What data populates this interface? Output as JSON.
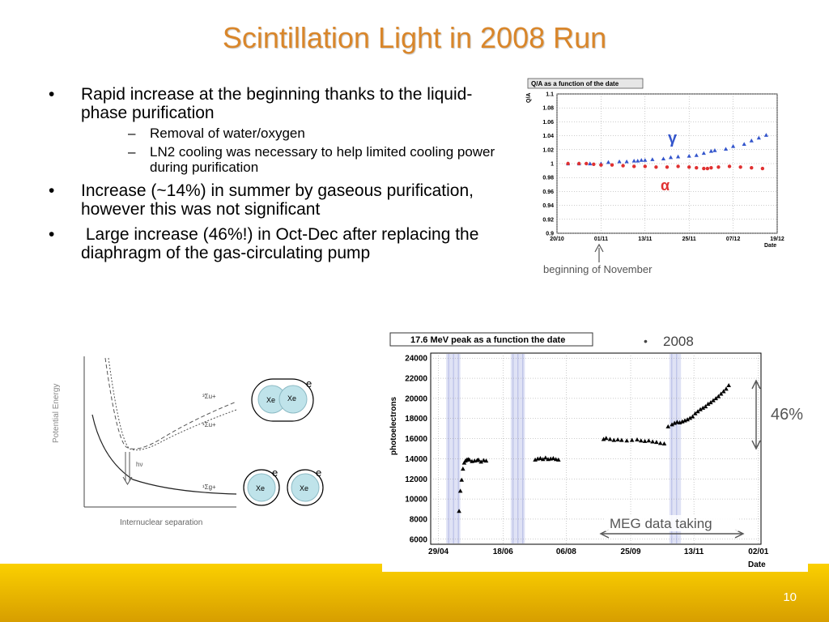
{
  "slide": {
    "title": "Scintillation Light in 2008 Run",
    "page_number": "10",
    "bullets": [
      {
        "text": "Rapid increase at the beginning thanks to the liquid-phase purification",
        "sub": [
          "Removal of water/oxygen",
          "LN2 cooling was necessary to help limited cooling power during purification"
        ]
      },
      {
        "text": "Increase (~14%) in summer by gaseous purification, however this was not significant",
        "sub": []
      },
      {
        "text": " Large increase (46%!) in Oct-Dec after replacing the diaphragm of the gas-circulating pump",
        "sub": []
      }
    ],
    "bullet_glyph": "•",
    "sub_glyph": "–"
  },
  "qa_chart": {
    "title": "Q/A as a function of the date",
    "ylabel": "Q/A",
    "xlabel": "Date",
    "x_ticks": [
      "20/10",
      "01/11",
      "13/11",
      "25/11",
      "07/12",
      "19/12"
    ],
    "y_ticks": [
      "0.9",
      "0.92",
      "0.94",
      "0.96",
      "0.98",
      "1",
      "1.02",
      "1.04",
      "1.06",
      "1.08",
      "1.1"
    ],
    "gamma_label": "γ",
    "alpha_label": "α",
    "annotation": "beginning of November",
    "gamma_color": "#3355cc",
    "alpha_color": "#e03030"
  },
  "peak_chart": {
    "title": "17.6 MeV peak as a function the date",
    "ylabel": "photoelectrons",
    "xlabel": "Date",
    "x_ticks": [
      "29/04",
      "18/06",
      "06/08",
      "25/09",
      "13/11",
      "02/01"
    ],
    "y_ticks": [
      "6000",
      "8000",
      "10000",
      "12000",
      "14000",
      "16000",
      "18000",
      "20000",
      "22000",
      "24000"
    ],
    "legend_bullet": "•",
    "legend": "2008",
    "percent_label": "46%",
    "data_taking_label": "MEG data taking"
  },
  "energy_diagram": {
    "ylabel": "Potential Energy",
    "xlabel": "Internuclear separation",
    "hv_label": "hν",
    "curve_labels": [
      "³Σu+",
      "¹Σu+",
      "¹Σg+"
    ]
  },
  "xe_diagram": {
    "xe_label": "Xe",
    "electron_label": "e"
  },
  "chart_data": [
    {
      "type": "scatter",
      "title": "Q/A as a function of the date",
      "xlabel": "Date",
      "ylabel": "Q/A",
      "x_ticks": [
        "20/10",
        "01/11",
        "13/11",
        "25/11",
        "07/12",
        "19/12"
      ],
      "ylim": [
        0.9,
        1.1
      ],
      "grid": true,
      "series": [
        {
          "name": "γ",
          "marker": "triangle",
          "color": "#3355cc",
          "x": [
            "23/10",
            "26/10",
            "29/10",
            "01/11",
            "03/11",
            "06/11",
            "08/11",
            "10/11",
            "11/11",
            "12/11",
            "13/11",
            "15/11",
            "18/11",
            "20/11",
            "22/11",
            "25/11",
            "27/11",
            "29/11",
            "01/12",
            "02/12",
            "05/12",
            "07/12",
            "10/12",
            "12/12",
            "14/12",
            "16/12"
          ],
          "y": [
            1.0,
            1.0,
            1.0,
            1.0,
            1.002,
            1.003,
            1.003,
            1.004,
            1.004,
            1.005,
            1.005,
            1.006,
            1.007,
            1.009,
            1.01,
            1.011,
            1.012,
            1.015,
            1.018,
            1.019,
            1.021,
            1.025,
            1.028,
            1.033,
            1.037,
            1.041
          ]
        },
        {
          "name": "α",
          "marker": "circle",
          "color": "#e03030",
          "x": [
            "23/10",
            "26/10",
            "28/10",
            "30/10",
            "01/11",
            "04/11",
            "07/11",
            "10/11",
            "13/11",
            "16/11",
            "19/11",
            "22/11",
            "25/11",
            "27/11",
            "29/11",
            "30/11",
            "01/12",
            "03/12",
            "06/12",
            "09/12",
            "12/12",
            "15/12"
          ],
          "y": [
            1.0,
            1.0,
            1.0,
            0.999,
            0.998,
            0.998,
            0.997,
            0.996,
            0.996,
            0.995,
            0.995,
            0.996,
            0.995,
            0.994,
            0.993,
            0.993,
            0.994,
            0.995,
            0.996,
            0.995,
            0.994,
            0.993
          ]
        }
      ]
    },
    {
      "type": "scatter",
      "title": "17.6 MeV peak as a function the date",
      "xlabel": "Date",
      "ylabel": "photoelectrons",
      "x_ticks": [
        "29/04",
        "18/06",
        "06/08",
        "25/09",
        "13/11",
        "02/01"
      ],
      "ylim": [
        5500,
        24500
      ],
      "grid": true,
      "series": [
        {
          "marker": "triangle",
          "color": "#000000",
          "x": [
            "15/05",
            "16/05",
            "17/05",
            "18/05",
            "19/05",
            "20/05",
            "21/05",
            "22/05",
            "23/05",
            "25/05",
            "27/05",
            "29/05",
            "30/05",
            "01/06",
            "03/06",
            "05/06",
            "13/07",
            "15/07",
            "17/07",
            "19/07",
            "21/07",
            "23/07",
            "25/07",
            "27/07",
            "29/07",
            "31/07",
            "04/09",
            "06/09",
            "09/09",
            "12/09",
            "15/09",
            "18/09",
            "22/09",
            "26/09",
            "30/09",
            "03/10",
            "06/10",
            "09/10",
            "12/10",
            "15/10",
            "18/10",
            "21/10",
            "24/10",
            "27/10",
            "29/10",
            "31/10",
            "02/11",
            "04/11",
            "06/11",
            "08/11",
            "10/11",
            "12/11",
            "14/11",
            "16/11",
            "18/11",
            "20/11",
            "22/11",
            "24/11",
            "26/11",
            "28/11",
            "30/11",
            "02/12",
            "04/12",
            "06/12",
            "08/12",
            "10/12"
          ],
          "y": [
            8800,
            10800,
            11900,
            13000,
            13600,
            13800,
            13900,
            13950,
            13900,
            13750,
            13800,
            13850,
            13900,
            13700,
            13850,
            13800,
            13900,
            14000,
            14050,
            13950,
            14100,
            13950,
            14000,
            14050,
            13950,
            13900,
            15950,
            16050,
            15950,
            15850,
            15900,
            15850,
            15800,
            15850,
            15900,
            15800,
            15750,
            15800,
            15700,
            15650,
            15550,
            15500,
            17200,
            17400,
            17550,
            17650,
            17600,
            17700,
            17800,
            17900,
            18050,
            18200,
            18500,
            18700,
            18900,
            19050,
            19200,
            19450,
            19600,
            19800,
            20000,
            20200,
            20450,
            20700,
            20950,
            21300
          ]
        }
      ],
      "shaded_bands": [
        [
          "05/05",
          "16/05"
        ],
        [
          "24/06",
          "05/07"
        ],
        [
          "25/10",
          "03/11"
        ]
      ]
    }
  ]
}
